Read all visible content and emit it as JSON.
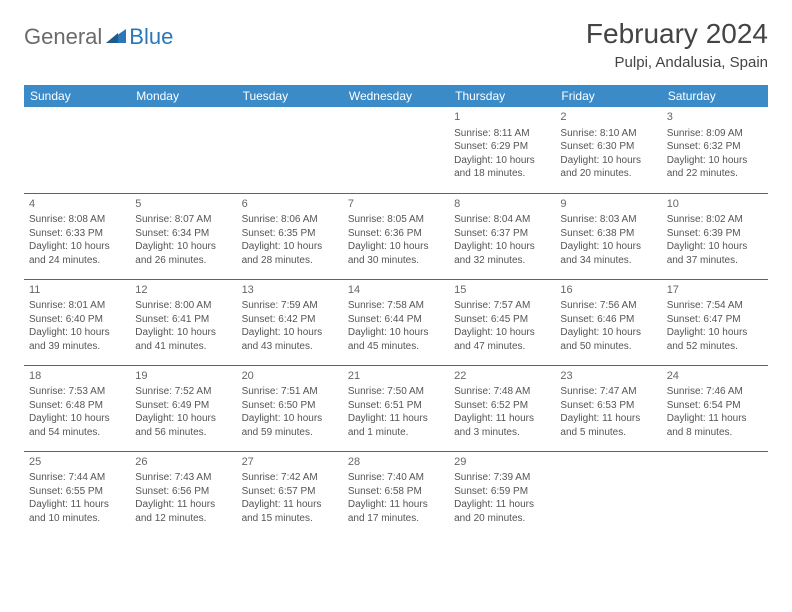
{
  "logo": {
    "general": "General",
    "blue": "Blue"
  },
  "title": "February 2024",
  "location": "Pulpi, Andalusia, Spain",
  "colors": {
    "header_bg": "#3b8bc9",
    "header_text": "#ffffff",
    "row_border": "#2f6fa3",
    "logo_grey": "#6b6b6b",
    "logo_blue": "#2b77b8",
    "body_text": "#555555"
  },
  "day_headers": [
    "Sunday",
    "Monday",
    "Tuesday",
    "Wednesday",
    "Thursday",
    "Friday",
    "Saturday"
  ],
  "weeks": [
    [
      null,
      null,
      null,
      null,
      {
        "n": "1",
        "sr": "Sunrise: 8:11 AM",
        "ss": "Sunset: 6:29 PM",
        "d1": "Daylight: 10 hours",
        "d2": "and 18 minutes."
      },
      {
        "n": "2",
        "sr": "Sunrise: 8:10 AM",
        "ss": "Sunset: 6:30 PM",
        "d1": "Daylight: 10 hours",
        "d2": "and 20 minutes."
      },
      {
        "n": "3",
        "sr": "Sunrise: 8:09 AM",
        "ss": "Sunset: 6:32 PM",
        "d1": "Daylight: 10 hours",
        "d2": "and 22 minutes."
      }
    ],
    [
      {
        "n": "4",
        "sr": "Sunrise: 8:08 AM",
        "ss": "Sunset: 6:33 PM",
        "d1": "Daylight: 10 hours",
        "d2": "and 24 minutes."
      },
      {
        "n": "5",
        "sr": "Sunrise: 8:07 AM",
        "ss": "Sunset: 6:34 PM",
        "d1": "Daylight: 10 hours",
        "d2": "and 26 minutes."
      },
      {
        "n": "6",
        "sr": "Sunrise: 8:06 AM",
        "ss": "Sunset: 6:35 PM",
        "d1": "Daylight: 10 hours",
        "d2": "and 28 minutes."
      },
      {
        "n": "7",
        "sr": "Sunrise: 8:05 AM",
        "ss": "Sunset: 6:36 PM",
        "d1": "Daylight: 10 hours",
        "d2": "and 30 minutes."
      },
      {
        "n": "8",
        "sr": "Sunrise: 8:04 AM",
        "ss": "Sunset: 6:37 PM",
        "d1": "Daylight: 10 hours",
        "d2": "and 32 minutes."
      },
      {
        "n": "9",
        "sr": "Sunrise: 8:03 AM",
        "ss": "Sunset: 6:38 PM",
        "d1": "Daylight: 10 hours",
        "d2": "and 34 minutes."
      },
      {
        "n": "10",
        "sr": "Sunrise: 8:02 AM",
        "ss": "Sunset: 6:39 PM",
        "d1": "Daylight: 10 hours",
        "d2": "and 37 minutes."
      }
    ],
    [
      {
        "n": "11",
        "sr": "Sunrise: 8:01 AM",
        "ss": "Sunset: 6:40 PM",
        "d1": "Daylight: 10 hours",
        "d2": "and 39 minutes."
      },
      {
        "n": "12",
        "sr": "Sunrise: 8:00 AM",
        "ss": "Sunset: 6:41 PM",
        "d1": "Daylight: 10 hours",
        "d2": "and 41 minutes."
      },
      {
        "n": "13",
        "sr": "Sunrise: 7:59 AM",
        "ss": "Sunset: 6:42 PM",
        "d1": "Daylight: 10 hours",
        "d2": "and 43 minutes."
      },
      {
        "n": "14",
        "sr": "Sunrise: 7:58 AM",
        "ss": "Sunset: 6:44 PM",
        "d1": "Daylight: 10 hours",
        "d2": "and 45 minutes."
      },
      {
        "n": "15",
        "sr": "Sunrise: 7:57 AM",
        "ss": "Sunset: 6:45 PM",
        "d1": "Daylight: 10 hours",
        "d2": "and 47 minutes."
      },
      {
        "n": "16",
        "sr": "Sunrise: 7:56 AM",
        "ss": "Sunset: 6:46 PM",
        "d1": "Daylight: 10 hours",
        "d2": "and 50 minutes."
      },
      {
        "n": "17",
        "sr": "Sunrise: 7:54 AM",
        "ss": "Sunset: 6:47 PM",
        "d1": "Daylight: 10 hours",
        "d2": "and 52 minutes."
      }
    ],
    [
      {
        "n": "18",
        "sr": "Sunrise: 7:53 AM",
        "ss": "Sunset: 6:48 PM",
        "d1": "Daylight: 10 hours",
        "d2": "and 54 minutes."
      },
      {
        "n": "19",
        "sr": "Sunrise: 7:52 AM",
        "ss": "Sunset: 6:49 PM",
        "d1": "Daylight: 10 hours",
        "d2": "and 56 minutes."
      },
      {
        "n": "20",
        "sr": "Sunrise: 7:51 AM",
        "ss": "Sunset: 6:50 PM",
        "d1": "Daylight: 10 hours",
        "d2": "and 59 minutes."
      },
      {
        "n": "21",
        "sr": "Sunrise: 7:50 AM",
        "ss": "Sunset: 6:51 PM",
        "d1": "Daylight: 11 hours",
        "d2": "and 1 minute."
      },
      {
        "n": "22",
        "sr": "Sunrise: 7:48 AM",
        "ss": "Sunset: 6:52 PM",
        "d1": "Daylight: 11 hours",
        "d2": "and 3 minutes."
      },
      {
        "n": "23",
        "sr": "Sunrise: 7:47 AM",
        "ss": "Sunset: 6:53 PM",
        "d1": "Daylight: 11 hours",
        "d2": "and 5 minutes."
      },
      {
        "n": "24",
        "sr": "Sunrise: 7:46 AM",
        "ss": "Sunset: 6:54 PM",
        "d1": "Daylight: 11 hours",
        "d2": "and 8 minutes."
      }
    ],
    [
      {
        "n": "25",
        "sr": "Sunrise: 7:44 AM",
        "ss": "Sunset: 6:55 PM",
        "d1": "Daylight: 11 hours",
        "d2": "and 10 minutes."
      },
      {
        "n": "26",
        "sr": "Sunrise: 7:43 AM",
        "ss": "Sunset: 6:56 PM",
        "d1": "Daylight: 11 hours",
        "d2": "and 12 minutes."
      },
      {
        "n": "27",
        "sr": "Sunrise: 7:42 AM",
        "ss": "Sunset: 6:57 PM",
        "d1": "Daylight: 11 hours",
        "d2": "and 15 minutes."
      },
      {
        "n": "28",
        "sr": "Sunrise: 7:40 AM",
        "ss": "Sunset: 6:58 PM",
        "d1": "Daylight: 11 hours",
        "d2": "and 17 minutes."
      },
      {
        "n": "29",
        "sr": "Sunrise: 7:39 AM",
        "ss": "Sunset: 6:59 PM",
        "d1": "Daylight: 11 hours",
        "d2": "and 20 minutes."
      },
      null,
      null
    ]
  ]
}
